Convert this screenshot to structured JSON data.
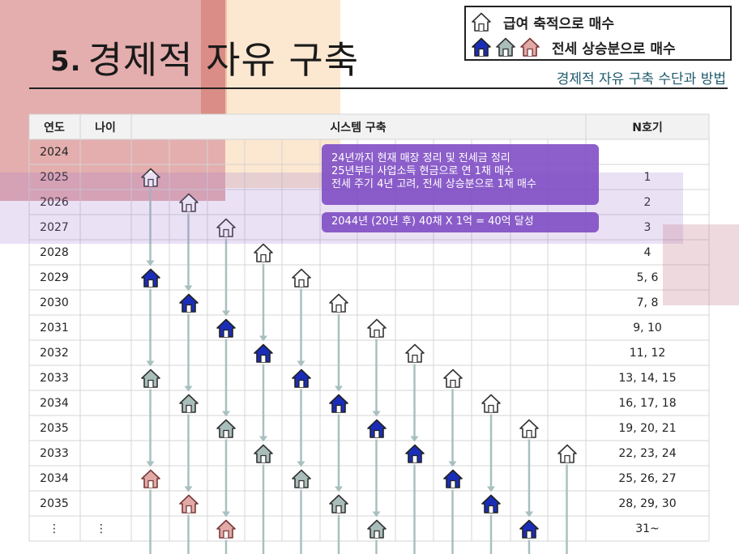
{
  "slide": {
    "number": "5.",
    "title": "경제적 자유 구축",
    "subtitle": "경제적 자유 구축 수단과 방법"
  },
  "legend": {
    "row1_label": "급여 축적으로 매수",
    "row1_icons": [
      "outline"
    ],
    "row2_label": "전세 상승분으로 매수",
    "row2_icons": [
      "blue",
      "gray",
      "pink"
    ]
  },
  "table": {
    "headers": {
      "year": "연도",
      "age": "나이",
      "system": "시스템 구축",
      "count": "N호기"
    },
    "rows": [
      {
        "year": "2024",
        "age": "",
        "count": ""
      },
      {
        "year": "2025",
        "age": "",
        "count": "1"
      },
      {
        "year": "2026",
        "age": "",
        "count": "2"
      },
      {
        "year": "2027",
        "age": "",
        "count": "3"
      },
      {
        "year": "2028",
        "age": "",
        "count": "4"
      },
      {
        "year": "2029",
        "age": "",
        "count": "5, 6"
      },
      {
        "year": "2030",
        "age": "",
        "count": "7, 8"
      },
      {
        "year": "2031",
        "age": "",
        "count": "9, 10"
      },
      {
        "year": "2032",
        "age": "",
        "count": "11, 12"
      },
      {
        "year": "2033",
        "age": "",
        "count": "13, 14, 15"
      },
      {
        "year": "2034",
        "age": "",
        "count": "16, 17, 18"
      },
      {
        "year": "2035",
        "age": "",
        "count": "19, 20, 21"
      },
      {
        "year": "2033",
        "age": "",
        "count": "22, 23, 24"
      },
      {
        "year": "2034",
        "age": "",
        "count": "25, 26, 27"
      },
      {
        "year": "2035",
        "age": "",
        "count": "28, 29, 30"
      },
      {
        "year": "⋮",
        "age": "⋮",
        "count": "31~"
      }
    ],
    "houses": [
      [
        1,
        0,
        "outline"
      ],
      [
        2,
        1,
        "outline"
      ],
      [
        3,
        2,
        "outline"
      ],
      [
        4,
        3,
        "outline"
      ],
      [
        5,
        0,
        "blue"
      ],
      [
        5,
        4,
        "outline"
      ],
      [
        6,
        1,
        "blue"
      ],
      [
        6,
        5,
        "outline"
      ],
      [
        7,
        2,
        "blue"
      ],
      [
        7,
        6,
        "outline"
      ],
      [
        8,
        3,
        "blue"
      ],
      [
        8,
        7,
        "outline"
      ],
      [
        9,
        0,
        "gray"
      ],
      [
        9,
        4,
        "blue"
      ],
      [
        9,
        8,
        "outline"
      ],
      [
        10,
        1,
        "gray"
      ],
      [
        10,
        5,
        "blue"
      ],
      [
        10,
        9,
        "outline"
      ],
      [
        11,
        2,
        "gray"
      ],
      [
        11,
        6,
        "blue"
      ],
      [
        11,
        10,
        "outline"
      ],
      [
        12,
        3,
        "gray"
      ],
      [
        12,
        7,
        "blue"
      ],
      [
        12,
        11,
        "outline"
      ],
      [
        13,
        0,
        "pink"
      ],
      [
        13,
        4,
        "gray"
      ],
      [
        13,
        8,
        "blue"
      ],
      [
        14,
        1,
        "pink"
      ],
      [
        14,
        5,
        "gray"
      ],
      [
        14,
        9,
        "blue"
      ],
      [
        15,
        2,
        "pink"
      ],
      [
        15,
        6,
        "gray"
      ],
      [
        15,
        10,
        "blue"
      ]
    ]
  },
  "notes": {
    "line1": "24년까지 현재 매장 정리 및 전세금 정리",
    "line2": "25년부터 사업소득 현금으로 연 1채 매수",
    "line3": "전세 주기 4년 고려, 전세 상승분으로 1채 매수",
    "goal": "2044년 (20년 후) 40채 X 1억 = 40억 달성"
  },
  "colors": {
    "blue": "#1a2db8",
    "gray": "#a9bebb",
    "pink": "#e2aaa6",
    "arrow": "#a8c0bf",
    "note": "#8a55c8"
  }
}
